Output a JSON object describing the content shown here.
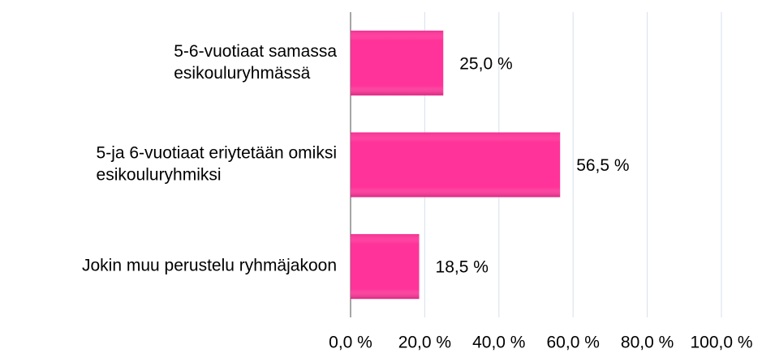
{
  "chart_data": {
    "type": "bar",
    "orientation": "horizontal",
    "categories": [
      [
        "5-6-vuotiaat samassa",
        "esikouluryhmässä"
      ],
      [
        "5-ja 6-vuotiaat eriytetään omiksi",
        "esikouluryhmiksi"
      ],
      [
        "Jokin muu perustelu ryhmäjakoon"
      ]
    ],
    "values": [
      25,
      56.5,
      18.5
    ],
    "value_labels": [
      "25,0 %",
      "56,5 %",
      "18,5 %"
    ],
    "color": "#ff3399",
    "xlim": [
      0,
      100
    ],
    "xticks": [
      {
        "value": 0,
        "label": "0,0 %"
      },
      {
        "value": 20,
        "label": "20,0 %"
      },
      {
        "value": 40,
        "label": "40,0 %"
      },
      {
        "value": 60,
        "label": "60,0 %"
      },
      {
        "value": 80,
        "label": "80,0 %"
      },
      {
        "value": 100,
        "label": "100,0 %"
      }
    ],
    "grid": true
  }
}
